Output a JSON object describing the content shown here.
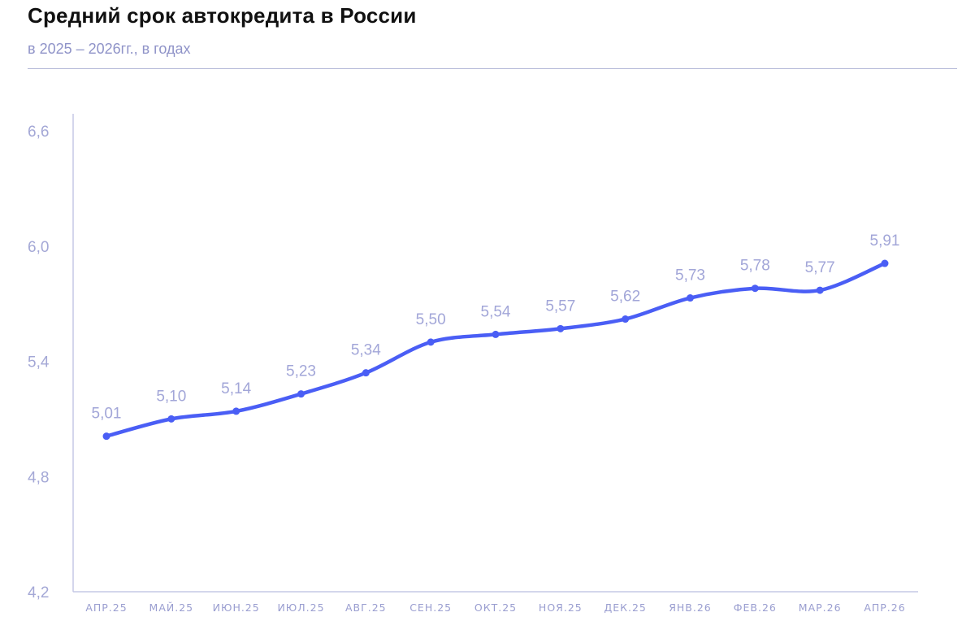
{
  "chart_data": {
    "type": "line",
    "title": "Средний срок автокредита в России",
    "subtitle": "в 2025 – 2026гг., в годах",
    "categories": [
      "АПР.25",
      "МАЙ.25",
      "ИЮН.25",
      "ИЮЛ.25",
      "АВГ.25",
      "СЕН.25",
      "ОКТ.25",
      "НОЯ.25",
      "ДЕК.25",
      "ЯНВ.26",
      "ФЕВ.26",
      "МАР.26",
      "АПР.26"
    ],
    "values": [
      5.01,
      5.1,
      5.14,
      5.23,
      5.34,
      5.5,
      5.54,
      5.57,
      5.62,
      5.73,
      5.78,
      5.77,
      5.91
    ],
    "value_labels": [
      "5,01",
      "5,10",
      "5,14",
      "5,23",
      "5,34",
      "5,50",
      "5,54",
      "5,57",
      "5,62",
      "5,73",
      "5,78",
      "5,77",
      "5,91"
    ],
    "yticks": [
      4.2,
      4.8,
      5.4,
      6.0,
      6.6
    ],
    "ytick_labels": [
      "4,2",
      "4,8",
      "5,4",
      "6,0",
      "6,6"
    ],
    "ylim": [
      4.2,
      6.6
    ],
    "grid": false,
    "line_color": "#4a5ef5",
    "axis_color": "#c5c8e6",
    "label_color": "#a2a6d8"
  }
}
